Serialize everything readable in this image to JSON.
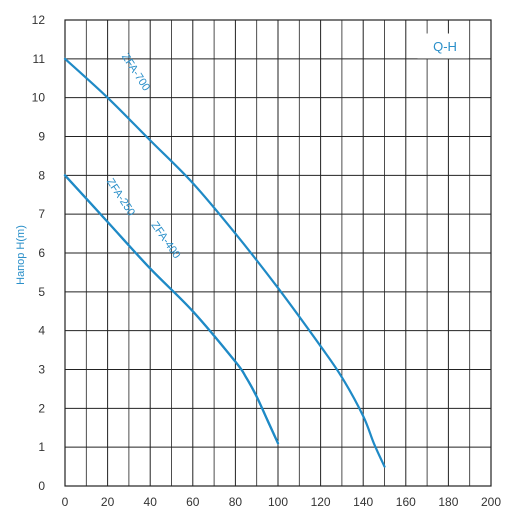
{
  "chart_data": {
    "type": "line",
    "title": "",
    "xlabel": "",
    "ylabel": "Напор H(m)",
    "xlim": [
      0,
      200
    ],
    "ylim": [
      0,
      12
    ],
    "x_ticks": [
      0,
      20,
      40,
      60,
      80,
      100,
      120,
      140,
      160,
      180,
      200
    ],
    "y_ticks": [
      0,
      1,
      2,
      3,
      4,
      5,
      6,
      7,
      8,
      9,
      10,
      11,
      12
    ],
    "grid": true,
    "badge": "Q-H",
    "series": [
      {
        "name": "ZFA-700",
        "x": [
          0,
          20,
          40,
          60,
          80,
          100,
          120,
          130,
          140,
          145,
          150
        ],
        "y": [
          11,
          10,
          8.9,
          7.8,
          6.5,
          5.1,
          3.6,
          2.8,
          1.8,
          1.1,
          0.5
        ]
      },
      {
        "name": "ZFA-250",
        "x": [
          0,
          20,
          40,
          60,
          80,
          85,
          90,
          95,
          100
        ],
        "y": [
          8,
          6.8,
          5.6,
          4.5,
          3.2,
          2.8,
          2.3,
          1.7,
          1.1
        ]
      },
      {
        "name": "ZFA-400",
        "x": [
          0,
          20,
          40,
          60,
          80,
          85,
          90,
          95,
          100
        ],
        "y": [
          8,
          6.8,
          5.6,
          4.5,
          3.2,
          2.8,
          2.3,
          1.7,
          1.1
        ]
      }
    ],
    "colors": {
      "line": "#1f8ac6",
      "grid": "#222222",
      "text": "#2a8fc9"
    }
  }
}
